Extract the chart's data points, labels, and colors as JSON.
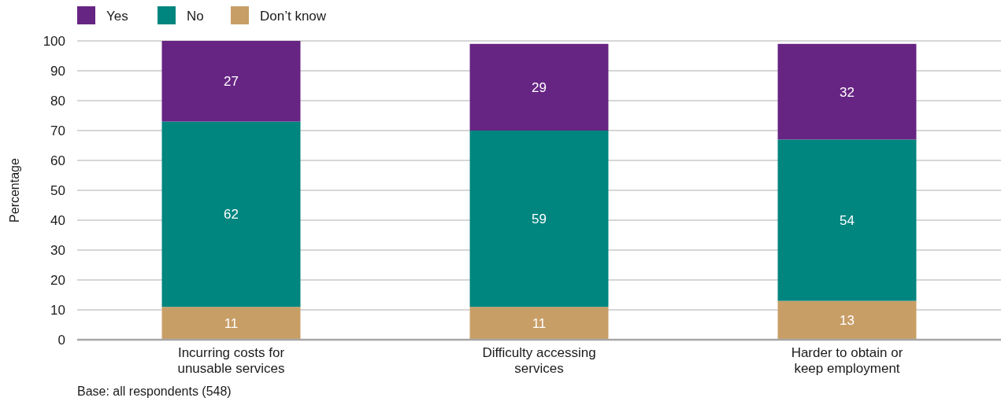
{
  "chart_data": {
    "type": "bar",
    "stacked": true,
    "categories": [
      "Incurring costs for unusable services",
      "Difficulty accessing services",
      "Harder to obtain or keep employment"
    ],
    "series": [
      {
        "name": "Don’t know",
        "color": "#c89e67",
        "values": [
          11,
          11,
          13
        ]
      },
      {
        "name": "No",
        "color": "#00857f",
        "values": [
          62,
          59,
          54
        ]
      },
      {
        "name": "Yes",
        "color": "#662483",
        "values": [
          27,
          29,
          32
        ]
      }
    ],
    "ylabel": "Percentage",
    "ylim": [
      0,
      100
    ],
    "yticks": [
      0,
      10,
      20,
      30,
      40,
      50,
      60,
      70,
      80,
      90,
      100
    ],
    "grid": "y",
    "legend": "top left",
    "data_labels": true,
    "annotations": [
      "Base: all respondents (548)"
    ]
  }
}
